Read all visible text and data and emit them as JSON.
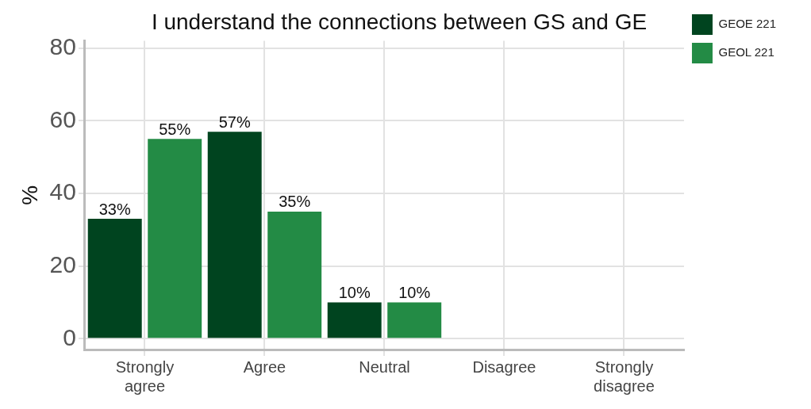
{
  "chart_data": {
    "type": "bar",
    "title": "I understand the connections between GS and GE",
    "ylabel": "%",
    "categories": [
      "Strongly agree",
      "Agree",
      "Neutral",
      "Disagree",
      "Strongly disagree"
    ],
    "series": [
      {
        "name": "GEOE 221",
        "color": "#00441f",
        "values": [
          33,
          57,
          10,
          null,
          null
        ],
        "value_labels": [
          "33%",
          "57%",
          "10%",
          null,
          null
        ]
      },
      {
        "name": "GEOL 221",
        "color": "#238b45",
        "values": [
          55,
          35,
          10,
          null,
          null
        ],
        "value_labels": [
          "55%",
          "35%",
          "10%",
          null,
          null
        ]
      }
    ],
    "ylim": [
      -3,
      82
    ],
    "yticks": [
      0,
      20,
      40,
      60,
      80
    ],
    "grid": true,
    "legend": "right"
  }
}
